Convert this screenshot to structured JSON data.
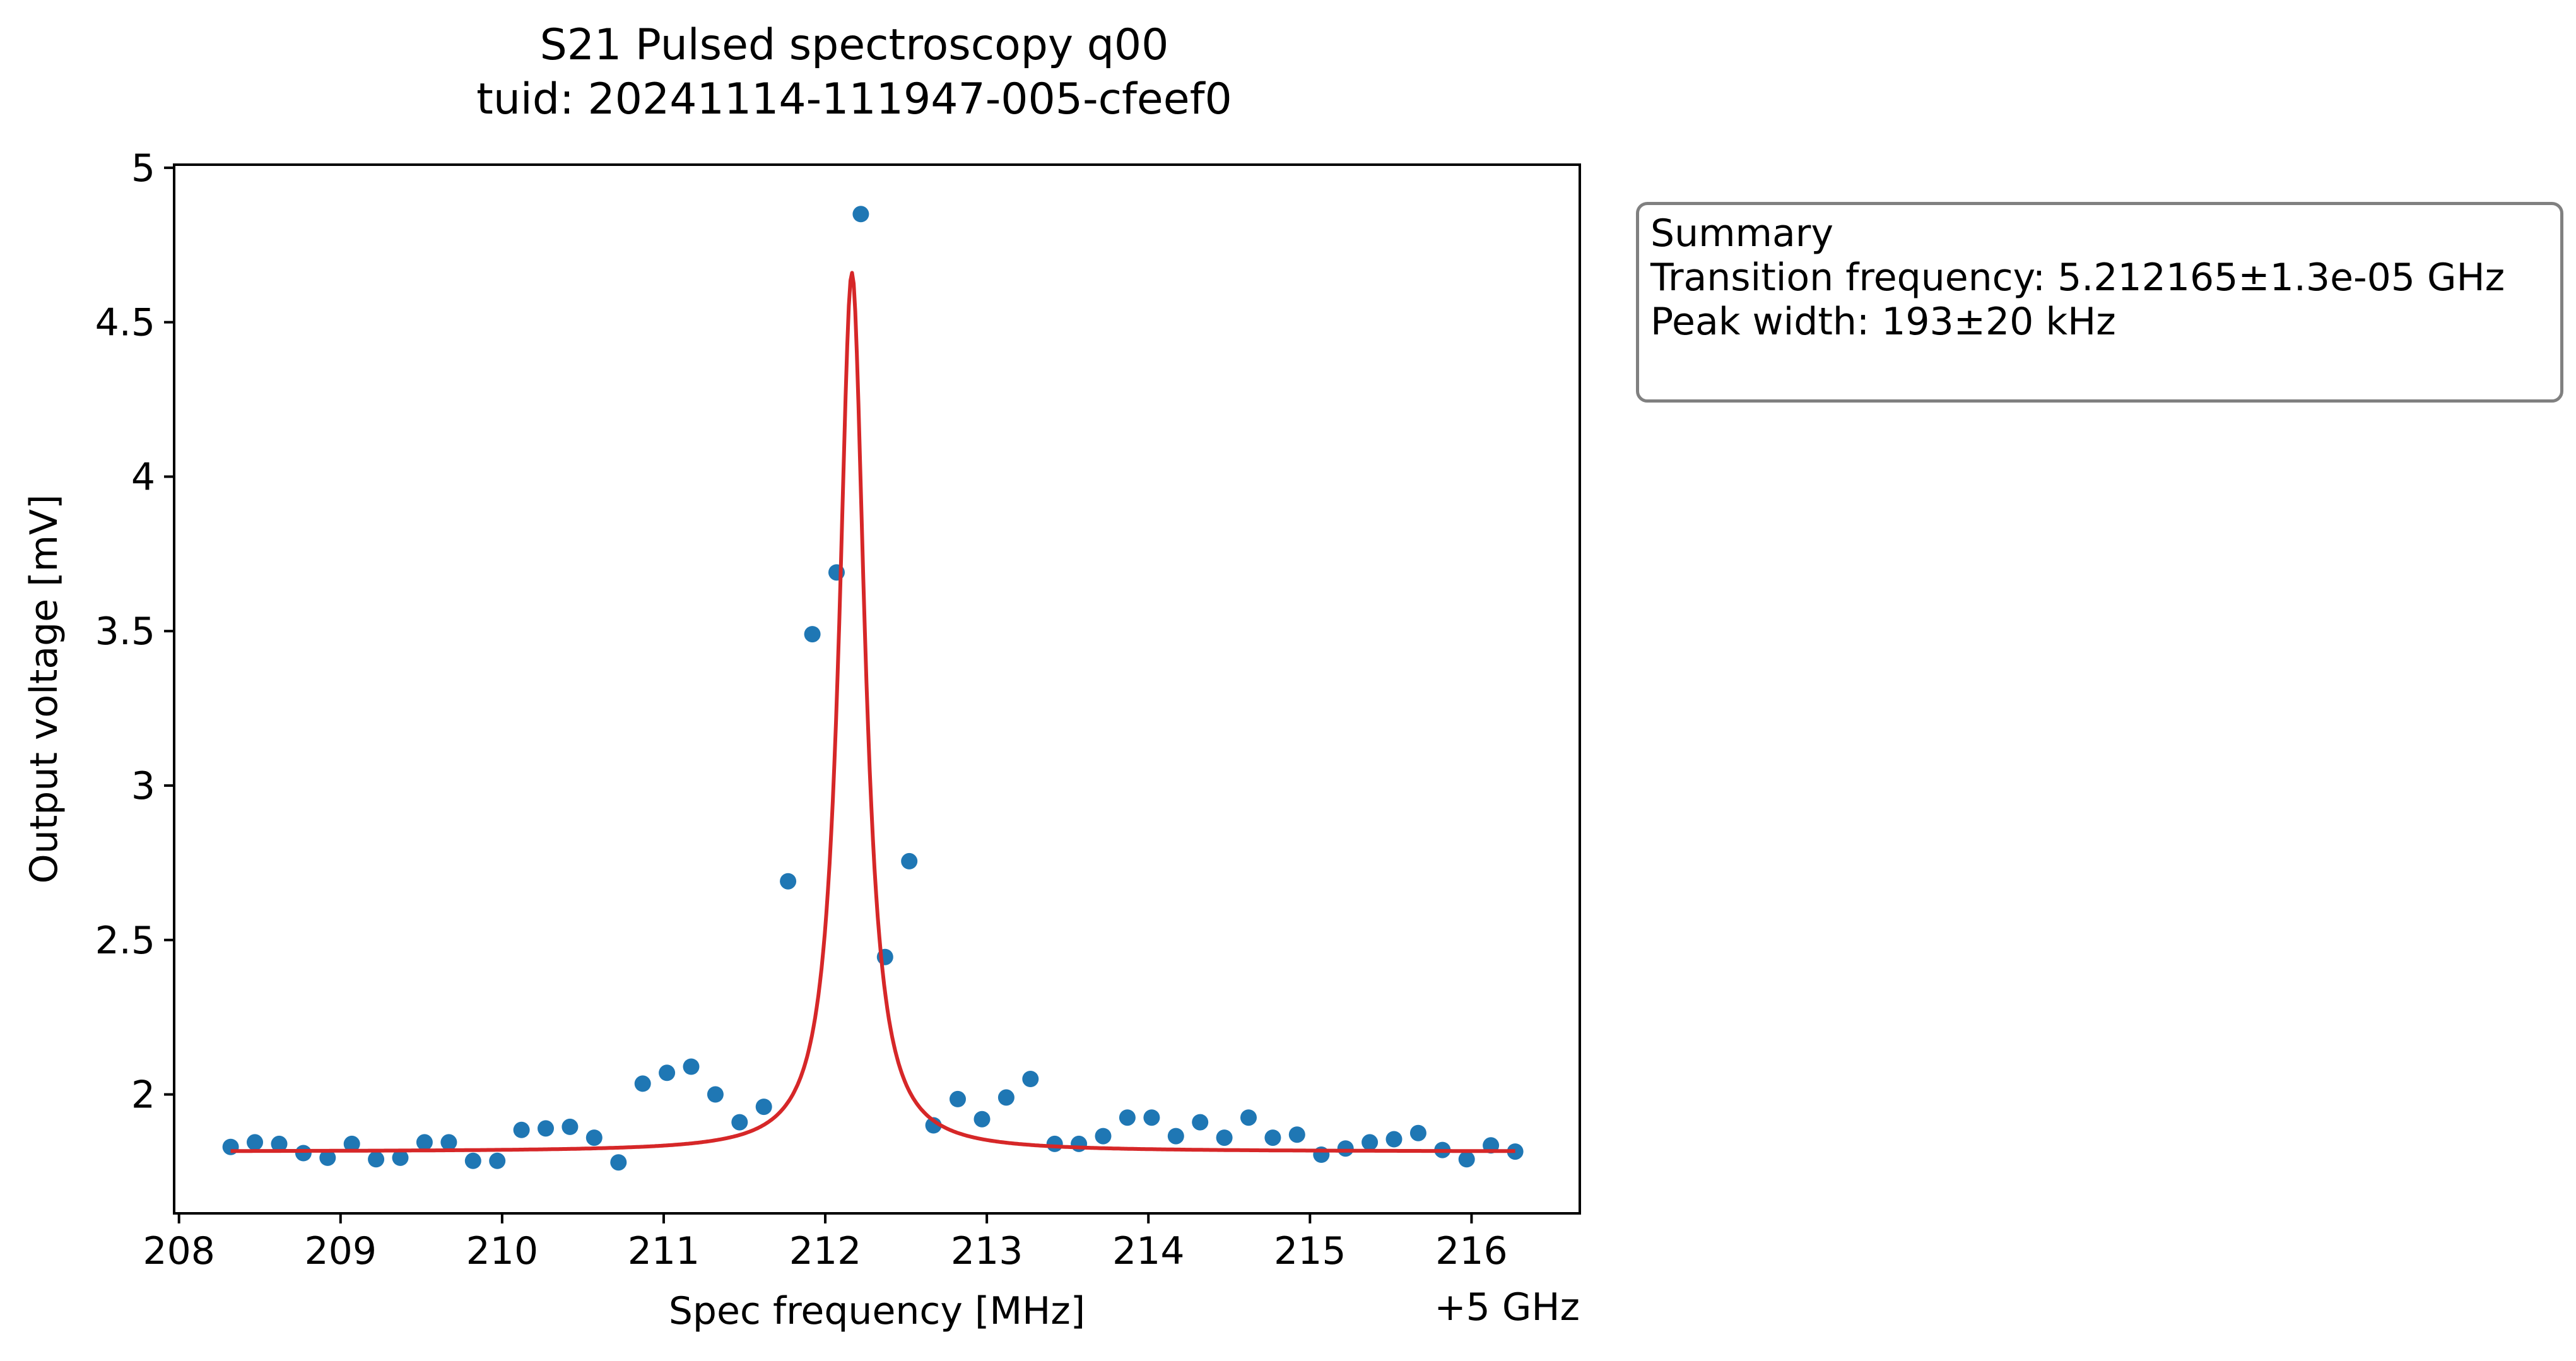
{
  "chart_data": {
    "type": "scatter",
    "title": "S21 Pulsed spectroscopy q00",
    "subtitle": "tuid: 20241114-111947-005-cfeef0",
    "xlabel": "Spec frequency [MHz]",
    "ylabel": "Output voltage [mV]",
    "x_offset_label": "+5 GHz",
    "xlim": [
      207.97,
      216.67
    ],
    "ylim": [
      1.615,
      5.01
    ],
    "xticks": [
      208,
      209,
      210,
      211,
      212,
      213,
      214,
      215,
      216
    ],
    "xtick_labels": [
      "208",
      "209",
      "210",
      "211",
      "212",
      "213",
      "214",
      "215",
      "216"
    ],
    "yticks": [
      2,
      2.5,
      3,
      3.5,
      4,
      4.5,
      5
    ],
    "ytick_labels": [
      "2",
      "2.5",
      "3",
      "3.5",
      "4",
      "4.5",
      "5"
    ],
    "grid": false,
    "series": [
      {
        "kind": "markers",
        "color": "#1f77b4",
        "x": [
          208.32,
          208.47,
          208.62,
          208.77,
          208.92,
          209.07,
          209.22,
          209.37,
          209.52,
          209.67,
          209.82,
          209.97,
          210.12,
          210.27,
          210.42,
          210.57,
          210.72,
          210.87,
          211.02,
          211.17,
          211.32,
          211.47,
          211.62,
          211.77,
          211.92,
          212.07,
          212.22,
          212.37,
          212.52,
          212.67,
          212.82,
          212.97,
          213.12,
          213.27,
          213.42,
          213.57,
          213.72,
          213.87,
          214.02,
          214.17,
          214.32,
          214.47,
          214.62,
          214.77,
          214.92,
          215.07,
          215.22,
          215.37,
          215.52,
          215.67,
          215.82,
          215.97,
          216.12,
          216.27
        ],
        "y": [
          1.83,
          1.845,
          1.84,
          1.81,
          1.795,
          1.84,
          1.79,
          1.795,
          1.845,
          1.845,
          1.785,
          1.785,
          1.885,
          1.89,
          1.895,
          1.86,
          1.78,
          2.035,
          2.07,
          2.09,
          2.0,
          1.91,
          1.96,
          2.69,
          3.49,
          3.69,
          4.85,
          2.445,
          2.755,
          1.9,
          1.985,
          1.92,
          1.99,
          2.05,
          1.84,
          1.84,
          1.865,
          1.925,
          1.925,
          1.865,
          1.91,
          1.86,
          1.925,
          1.86,
          1.87,
          1.805,
          1.825,
          1.845,
          1.855,
          1.875,
          1.82,
          1.79,
          1.835,
          1.815
        ]
      },
      {
        "kind": "fit-line",
        "color": "#d62728",
        "model": "lorentzian",
        "center": 212.165,
        "fwhm": 0.193,
        "offset": 1.815,
        "amplitude": 2.845,
        "x_range": [
          208.32,
          216.27
        ]
      }
    ],
    "annotation": {
      "lines": [
        "Summary",
        "Transition frequency: 5.212165±1.3e-05 GHz",
        "Peak width: 193±20 kHz"
      ],
      "position": "right of plot, top"
    }
  }
}
